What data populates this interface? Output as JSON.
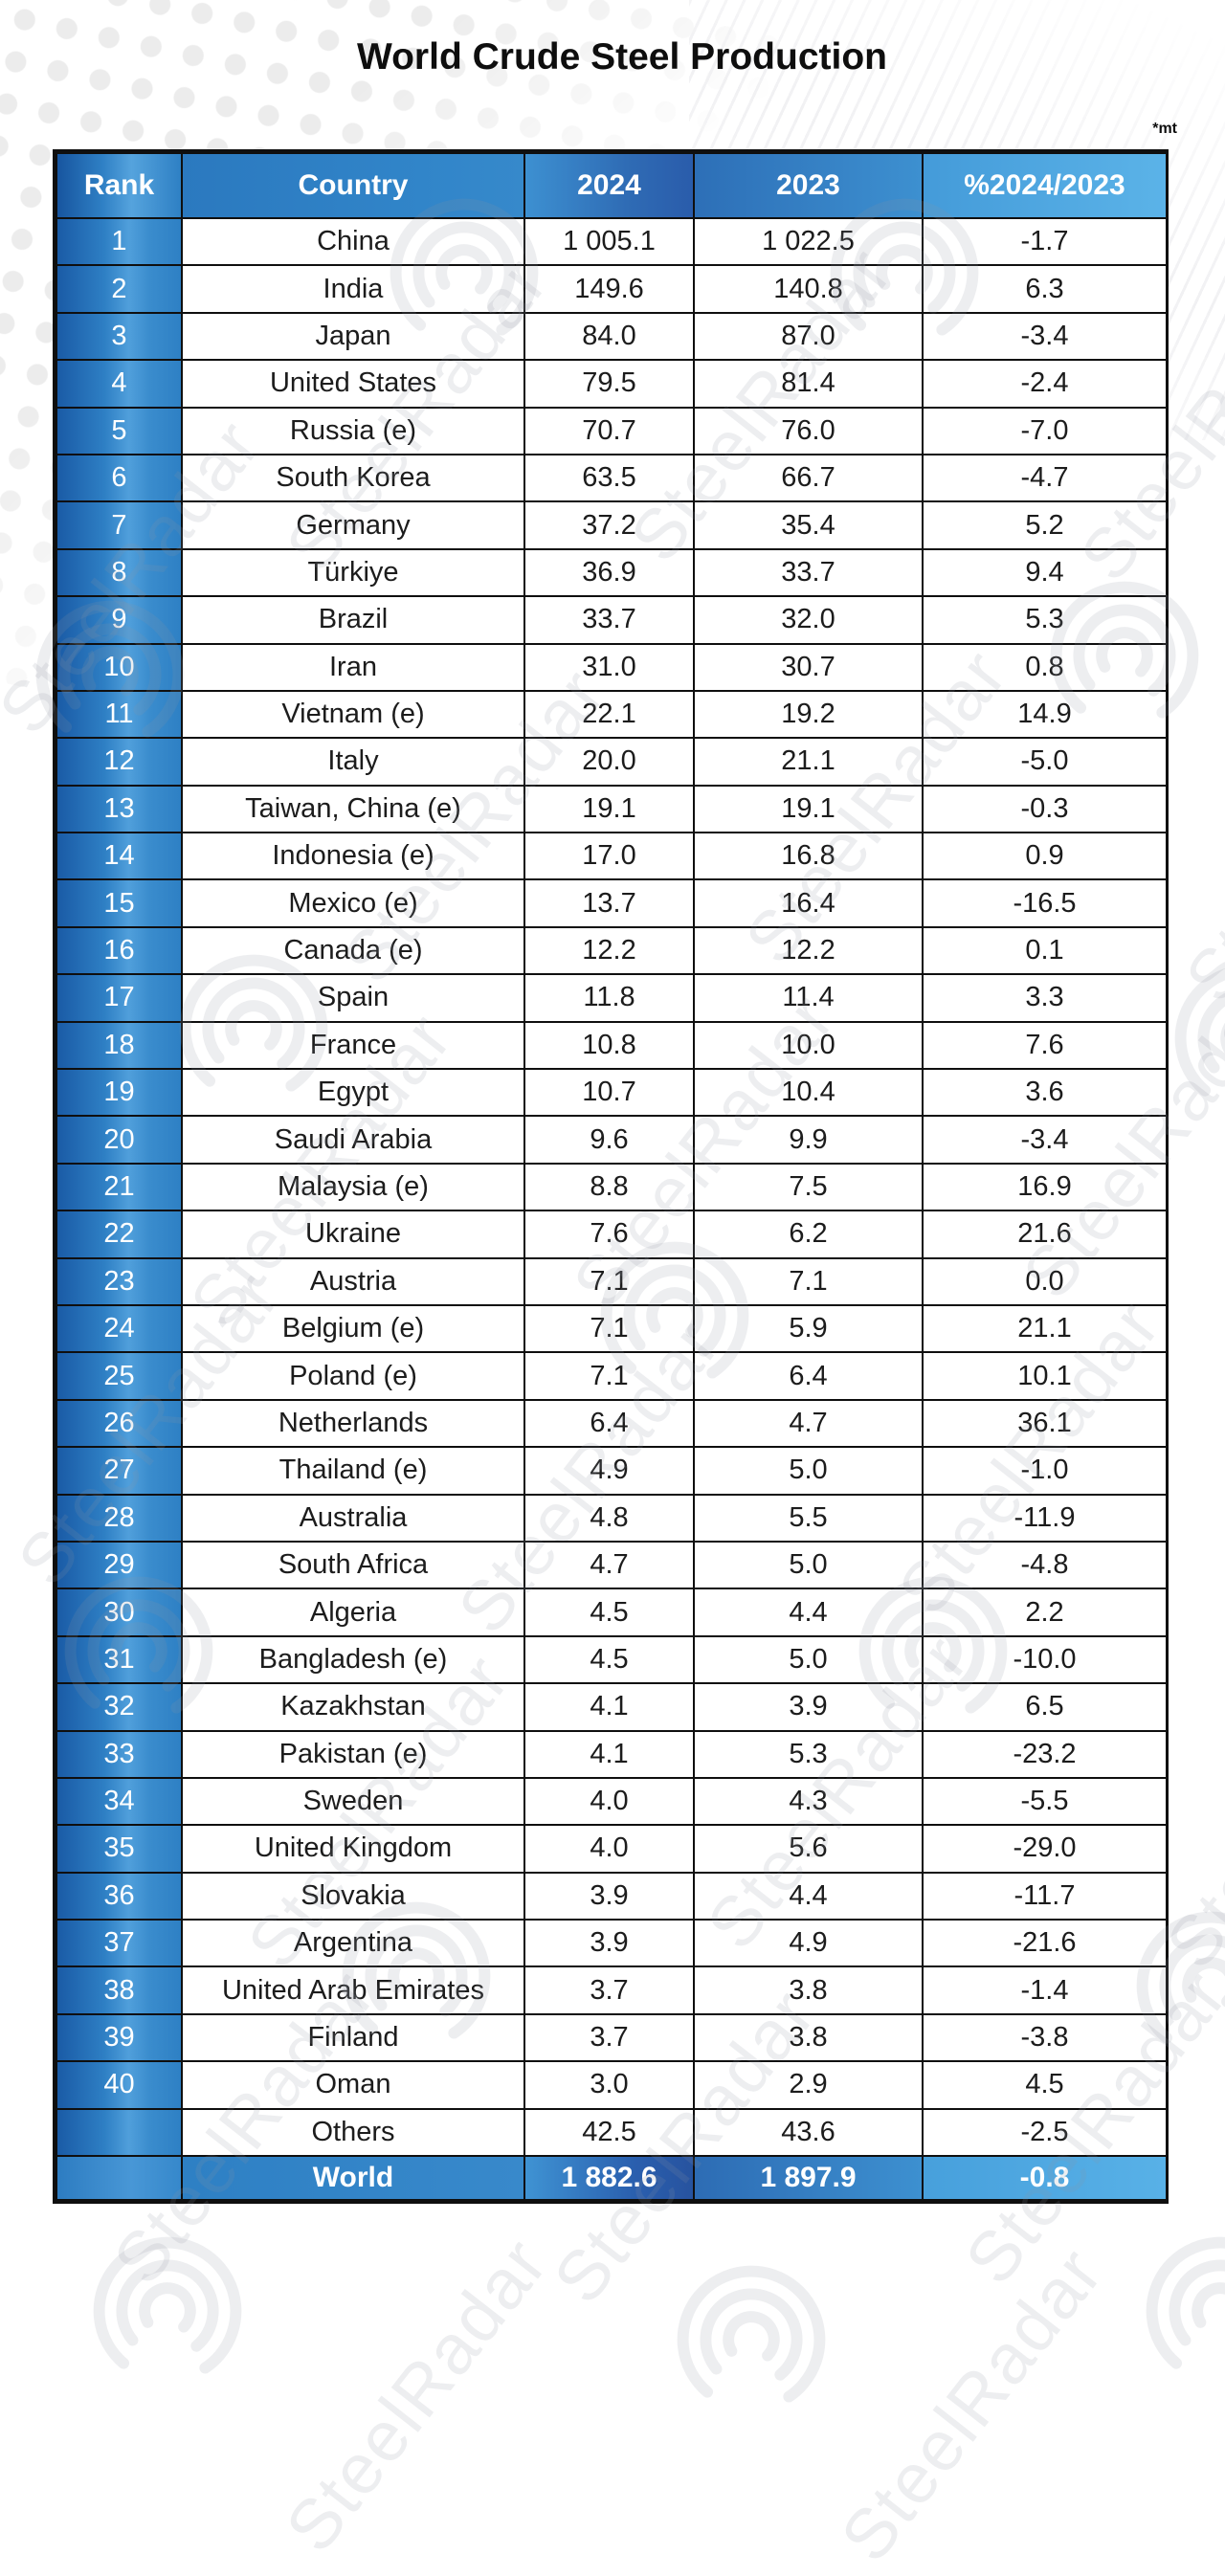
{
  "page": {
    "title": "World Crude Steel Production",
    "unit_note": "*mt",
    "watermark_text": "SteelRadar"
  },
  "colors": {
    "table_blue_dark": "#1a5ba6",
    "table_blue": "#2e80c4",
    "table_blue_light": "#5bb3e8",
    "border_black": "#0f0f0f",
    "text_black": "#1c1c1c",
    "dot_gray": "#ececec"
  },
  "table": {
    "columns": [
      "Rank",
      "Country",
      "2024",
      "2023",
      "%2024/2023"
    ],
    "rows": [
      {
        "rank": "1",
        "country": "China",
        "y2024": "1 005.1",
        "y2023": "1 022.5",
        "pct": "-1.7"
      },
      {
        "rank": "2",
        "country": "India",
        "y2024": "149.6",
        "y2023": "140.8",
        "pct": "6.3"
      },
      {
        "rank": "3",
        "country": "Japan",
        "y2024": "84.0",
        "y2023": "87.0",
        "pct": "-3.4"
      },
      {
        "rank": "4",
        "country": "United States",
        "y2024": "79.5",
        "y2023": "81.4",
        "pct": "-2.4"
      },
      {
        "rank": "5",
        "country": "Russia (e)",
        "y2024": "70.7",
        "y2023": "76.0",
        "pct": "-7.0"
      },
      {
        "rank": "6",
        "country": "South Korea",
        "y2024": "63.5",
        "y2023": "66.7",
        "pct": "-4.7"
      },
      {
        "rank": "7",
        "country": "Germany",
        "y2024": "37.2",
        "y2023": "35.4",
        "pct": "5.2"
      },
      {
        "rank": "8",
        "country": "Türkiye",
        "y2024": "36.9",
        "y2023": "33.7",
        "pct": "9.4"
      },
      {
        "rank": "9",
        "country": "Brazil",
        "y2024": "33.7",
        "y2023": "32.0",
        "pct": "5.3"
      },
      {
        "rank": "10",
        "country": "Iran",
        "y2024": "31.0",
        "y2023": "30.7",
        "pct": "0.8"
      },
      {
        "rank": "11",
        "country": "Vietnam (e)",
        "y2024": "22.1",
        "y2023": "19.2",
        "pct": "14.9"
      },
      {
        "rank": "12",
        "country": "Italy",
        "y2024": "20.0",
        "y2023": "21.1",
        "pct": "-5.0"
      },
      {
        "rank": "13",
        "country": "Taiwan, China (e)",
        "y2024": "19.1",
        "y2023": "19.1",
        "pct": "-0.3"
      },
      {
        "rank": "14",
        "country": "Indonesia (e)",
        "y2024": "17.0",
        "y2023": "16.8",
        "pct": "0.9"
      },
      {
        "rank": "15",
        "country": "Mexico (e)",
        "y2024": "13.7",
        "y2023": "16.4",
        "pct": "-16.5"
      },
      {
        "rank": "16",
        "country": "Canada (e)",
        "y2024": "12.2",
        "y2023": "12.2",
        "pct": "0.1"
      },
      {
        "rank": "17",
        "country": "Spain",
        "y2024": "11.8",
        "y2023": "11.4",
        "pct": "3.3"
      },
      {
        "rank": "18",
        "country": "France",
        "y2024": "10.8",
        "y2023": "10.0",
        "pct": "7.6"
      },
      {
        "rank": "19",
        "country": "Egypt",
        "y2024": "10.7",
        "y2023": "10.4",
        "pct": "3.6"
      },
      {
        "rank": "20",
        "country": "Saudi Arabia",
        "y2024": "9.6",
        "y2023": "9.9",
        "pct": "-3.4"
      },
      {
        "rank": "21",
        "country": "Malaysia (e)",
        "y2024": "8.8",
        "y2023": "7.5",
        "pct": "16.9"
      },
      {
        "rank": "22",
        "country": "Ukraine",
        "y2024": "7.6",
        "y2023": "6.2",
        "pct": "21.6"
      },
      {
        "rank": "23",
        "country": "Austria",
        "y2024": "7.1",
        "y2023": "7.1",
        "pct": "0.0"
      },
      {
        "rank": "24",
        "country": "Belgium (e)",
        "y2024": "7.1",
        "y2023": "5.9",
        "pct": "21.1"
      },
      {
        "rank": "25",
        "country": "Poland (e)",
        "y2024": "7.1",
        "y2023": "6.4",
        "pct": "10.1"
      },
      {
        "rank": "26",
        "country": "Netherlands",
        "y2024": "6.4",
        "y2023": "4.7",
        "pct": "36.1"
      },
      {
        "rank": "27",
        "country": "Thailand (e)",
        "y2024": "4.9",
        "y2023": "5.0",
        "pct": "-1.0"
      },
      {
        "rank": "28",
        "country": "Australia",
        "y2024": "4.8",
        "y2023": "5.5",
        "pct": "-11.9"
      },
      {
        "rank": "29",
        "country": "South Africa",
        "y2024": "4.7",
        "y2023": "5.0",
        "pct": "-4.8"
      },
      {
        "rank": "30",
        "country": "Algeria",
        "y2024": "4.5",
        "y2023": "4.4",
        "pct": "2.2"
      },
      {
        "rank": "31",
        "country": "Bangladesh (e)",
        "y2024": "4.5",
        "y2023": "5.0",
        "pct": "-10.0"
      },
      {
        "rank": "32",
        "country": "Kazakhstan",
        "y2024": "4.1",
        "y2023": "3.9",
        "pct": "6.5"
      },
      {
        "rank": "33",
        "country": "Pakistan (e)",
        "y2024": "4.1",
        "y2023": "5.3",
        "pct": "-23.2"
      },
      {
        "rank": "34",
        "country": "Sweden",
        "y2024": "4.0",
        "y2023": "4.3",
        "pct": "-5.5"
      },
      {
        "rank": "35",
        "country": "United Kingdom",
        "y2024": "4.0",
        "y2023": "5.6",
        "pct": "-29.0"
      },
      {
        "rank": "36",
        "country": "Slovakia",
        "y2024": "3.9",
        "y2023": "4.4",
        "pct": "-11.7"
      },
      {
        "rank": "37",
        "country": "Argentina",
        "y2024": "3.9",
        "y2023": "4.9",
        "pct": "-21.6"
      },
      {
        "rank": "38",
        "country": "United Arab Emirates",
        "y2024": "3.7",
        "y2023": "3.8",
        "pct": "-1.4"
      },
      {
        "rank": "39",
        "country": "Finland",
        "y2024": "3.7",
        "y2023": "3.8",
        "pct": "-3.8"
      },
      {
        "rank": "40",
        "country": "Oman",
        "y2024": "3.0",
        "y2023": "2.9",
        "pct": "4.5"
      },
      {
        "rank": "",
        "country": "Others",
        "y2024": "42.5",
        "y2023": "43.6",
        "pct": "-2.5"
      }
    ],
    "total": {
      "rank": "",
      "country": "World",
      "y2024": "1 882.6",
      "y2023": "1 897.9",
      "pct": "-0.8"
    }
  },
  "chart_data": {
    "type": "table",
    "title": "World Crude Steel Production",
    "unit": "mt",
    "columns": [
      "Rank",
      "Country",
      "2024",
      "2023",
      "%2024/2023"
    ],
    "rows": [
      [
        1,
        "China",
        1005.1,
        1022.5,
        -1.7
      ],
      [
        2,
        "India",
        149.6,
        140.8,
        6.3
      ],
      [
        3,
        "Japan",
        84.0,
        87.0,
        -3.4
      ],
      [
        4,
        "United States",
        79.5,
        81.4,
        -2.4
      ],
      [
        5,
        "Russia (e)",
        70.7,
        76.0,
        -7.0
      ],
      [
        6,
        "South Korea",
        63.5,
        66.7,
        -4.7
      ],
      [
        7,
        "Germany",
        37.2,
        35.4,
        5.2
      ],
      [
        8,
        "Türkiye",
        36.9,
        33.7,
        9.4
      ],
      [
        9,
        "Brazil",
        33.7,
        32.0,
        5.3
      ],
      [
        10,
        "Iran",
        31.0,
        30.7,
        0.8
      ],
      [
        11,
        "Vietnam (e)",
        22.1,
        19.2,
        14.9
      ],
      [
        12,
        "Italy",
        20.0,
        21.1,
        -5.0
      ],
      [
        13,
        "Taiwan, China (e)",
        19.1,
        19.1,
        -0.3
      ],
      [
        14,
        "Indonesia (e)",
        17.0,
        16.8,
        0.9
      ],
      [
        15,
        "Mexico (e)",
        13.7,
        16.4,
        -16.5
      ],
      [
        16,
        "Canada (e)",
        12.2,
        12.2,
        0.1
      ],
      [
        17,
        "Spain",
        11.8,
        11.4,
        3.3
      ],
      [
        18,
        "France",
        10.8,
        10.0,
        7.6
      ],
      [
        19,
        "Egypt",
        10.7,
        10.4,
        3.6
      ],
      [
        20,
        "Saudi Arabia",
        9.6,
        9.9,
        -3.4
      ],
      [
        21,
        "Malaysia (e)",
        8.8,
        7.5,
        16.9
      ],
      [
        22,
        "Ukraine",
        7.6,
        6.2,
        21.6
      ],
      [
        23,
        "Austria",
        7.1,
        7.1,
        0.0
      ],
      [
        24,
        "Belgium (e)",
        7.1,
        5.9,
        21.1
      ],
      [
        25,
        "Poland (e)",
        7.1,
        6.4,
        10.1
      ],
      [
        26,
        "Netherlands",
        6.4,
        4.7,
        36.1
      ],
      [
        27,
        "Thailand (e)",
        4.9,
        5.0,
        -1.0
      ],
      [
        28,
        "Australia",
        4.8,
        5.5,
        -11.9
      ],
      [
        29,
        "South Africa",
        4.7,
        5.0,
        -4.8
      ],
      [
        30,
        "Algeria",
        4.5,
        4.4,
        2.2
      ],
      [
        31,
        "Bangladesh (e)",
        4.5,
        5.0,
        -10.0
      ],
      [
        32,
        "Kazakhstan",
        4.1,
        3.9,
        6.5
      ],
      [
        33,
        "Pakistan (e)",
        4.1,
        5.3,
        -23.2
      ],
      [
        34,
        "Sweden",
        4.0,
        4.3,
        -5.5
      ],
      [
        35,
        "United Kingdom",
        4.0,
        5.6,
        -29.0
      ],
      [
        36,
        "Slovakia",
        3.9,
        4.4,
        -11.7
      ],
      [
        37,
        "Argentina",
        3.9,
        4.9,
        -21.6
      ],
      [
        38,
        "United Arab Emirates",
        3.7,
        3.8,
        -1.4
      ],
      [
        39,
        "Finland",
        3.7,
        3.8,
        -3.8
      ],
      [
        40,
        "Oman",
        3.0,
        2.9,
        4.5
      ],
      [
        null,
        "Others",
        42.5,
        43.6,
        -2.5
      ],
      [
        null,
        "World",
        1882.6,
        1897.9,
        -0.8
      ]
    ]
  }
}
